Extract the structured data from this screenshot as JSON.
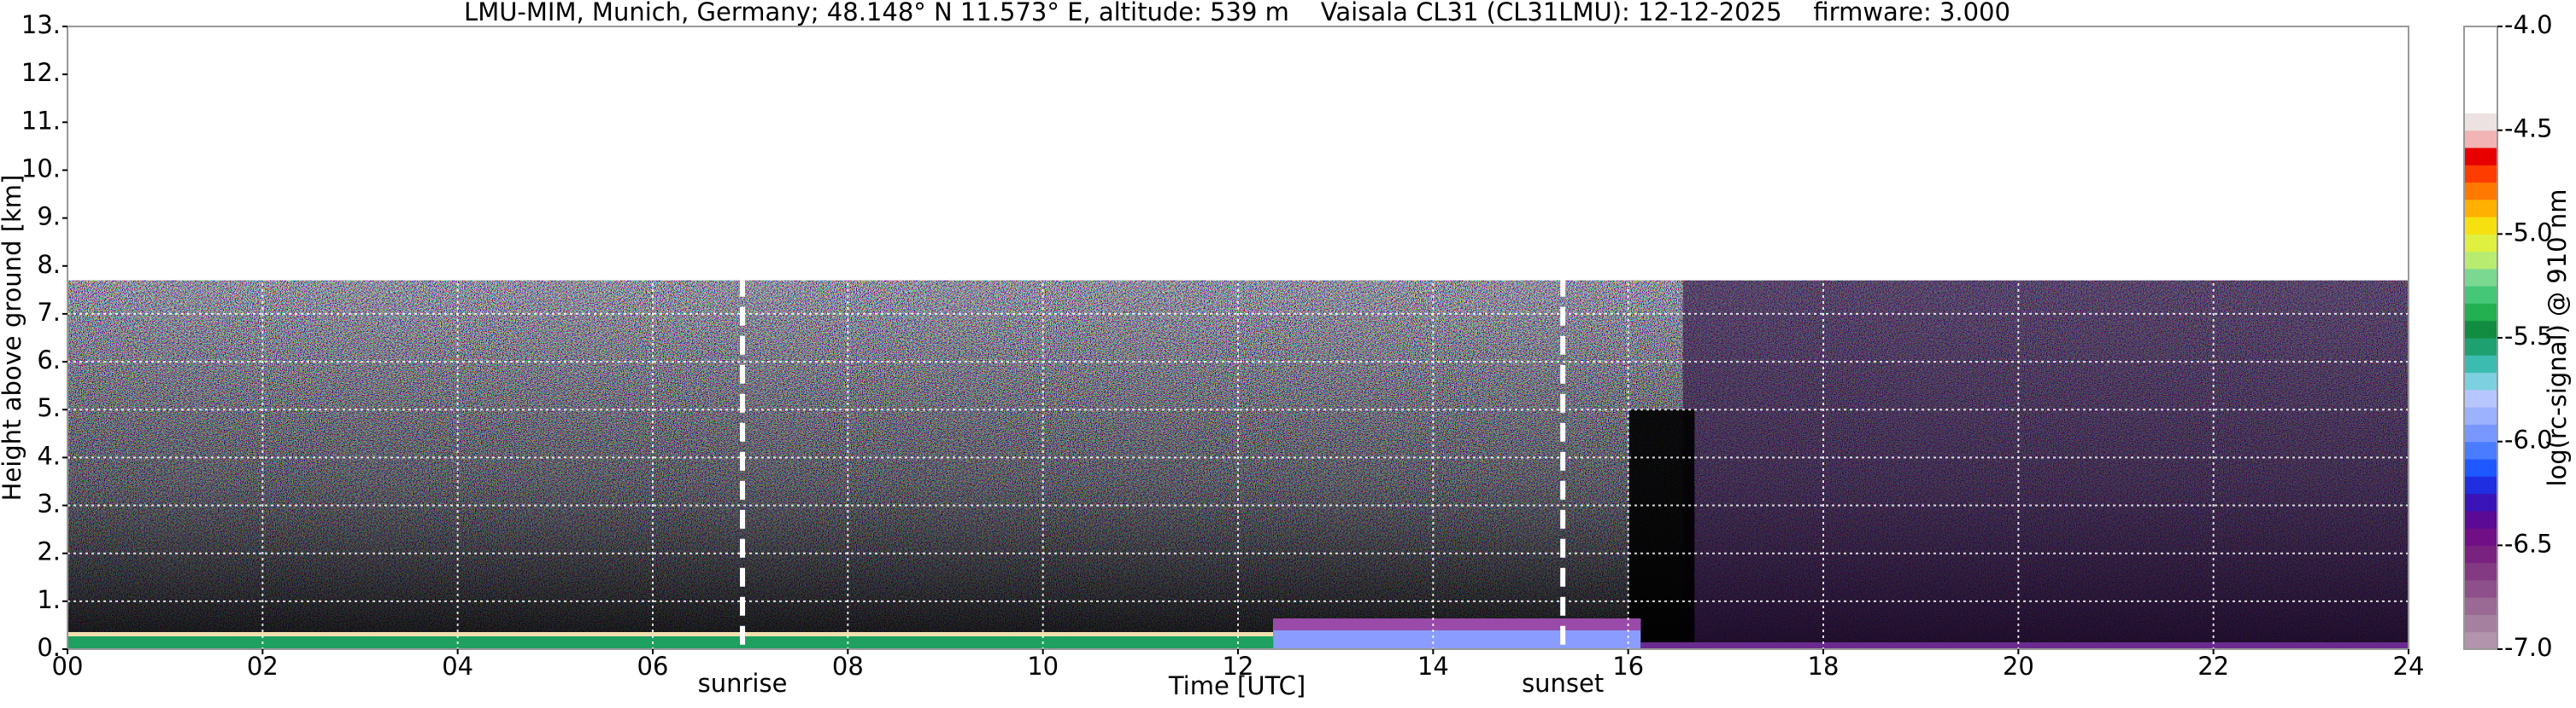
{
  "chart_data": {
    "type": "heatmap",
    "title": "LMU-MIM, Munich, Germany; 48.148° N 11.573° E, altitude: 539 m    Vaisala CL31 (CL31LMU): 12-12-2025    firmware: 3.000",
    "xlabel": "Time [UTC]",
    "ylabel": "Height above ground [km]",
    "xlim": [
      0,
      24
    ],
    "xticks": [
      {
        "value": 0,
        "label": "00"
      },
      {
        "value": 2,
        "label": "02"
      },
      {
        "value": 4,
        "label": "04"
      },
      {
        "value": 6,
        "label": "06"
      },
      {
        "value": 8,
        "label": "08"
      },
      {
        "value": 10,
        "label": "10"
      },
      {
        "value": 12,
        "label": "12"
      },
      14,
      16,
      18,
      20,
      22,
      24
    ],
    "ylim": [
      0,
      13
    ],
    "yticks": [
      {
        "value": 0,
        "label": "0."
      },
      {
        "value": 1,
        "label": "1."
      },
      {
        "value": 2,
        "label": "2."
      },
      {
        "value": 3,
        "label": "3."
      },
      {
        "value": 4,
        "label": "4."
      },
      {
        "value": 5,
        "label": "5."
      },
      {
        "value": 6,
        "label": "6."
      },
      {
        "value": 7,
        "label": "7."
      },
      {
        "value": 8,
        "label": "8."
      },
      {
        "value": 9,
        "label": "9."
      },
      {
        "value": 10,
        "label": "10."
      },
      {
        "value": 11,
        "label": "11."
      },
      {
        "value": 12,
        "label": "12."
      },
      {
        "value": 13,
        "label": "13."
      }
    ],
    "grid": true,
    "markers": [
      {
        "label": "sunrise",
        "x": 6.92
      },
      {
        "label": "sunset",
        "x": 15.33
      }
    ],
    "colorbar": {
      "label": "log(rc-signal) @ 910 nm",
      "lim": [
        -7,
        -4
      ],
      "ticks": [
        {
          "value": -7,
          "label": "-7.0"
        },
        -6.5,
        {
          "value": -6,
          "label": "-6.0"
        },
        -5.5,
        {
          "value": -5,
          "label": "-5.0"
        },
        -4.5,
        {
          "value": -4,
          "label": "-4.0"
        }
      ],
      "colors": [
        "#b394ad",
        "#a6819f",
        "#9a6a94",
        "#8d508a",
        "#833a82",
        "#7a2280",
        "#700f86",
        "#5a0a94",
        "#3a14b8",
        "#1e2ee0",
        "#1f58ff",
        "#4a7cff",
        "#7898ff",
        "#9cb2ff",
        "#b8c6ff",
        "#7dd0e0",
        "#3cbcb0",
        "#1ea070",
        "#128c40",
        "#22b050",
        "#44c878",
        "#7ad890",
        "#b8ec70",
        "#e0f040",
        "#f6e010",
        "#ffb000",
        "#ff7800",
        "#ff3c00",
        "#e80000",
        "#f2b4b4",
        "#ede2e2",
        "#ffffff",
        "#ffffff",
        "#ffffff",
        "#ffffff",
        "#ffffff"
      ]
    }
  }
}
